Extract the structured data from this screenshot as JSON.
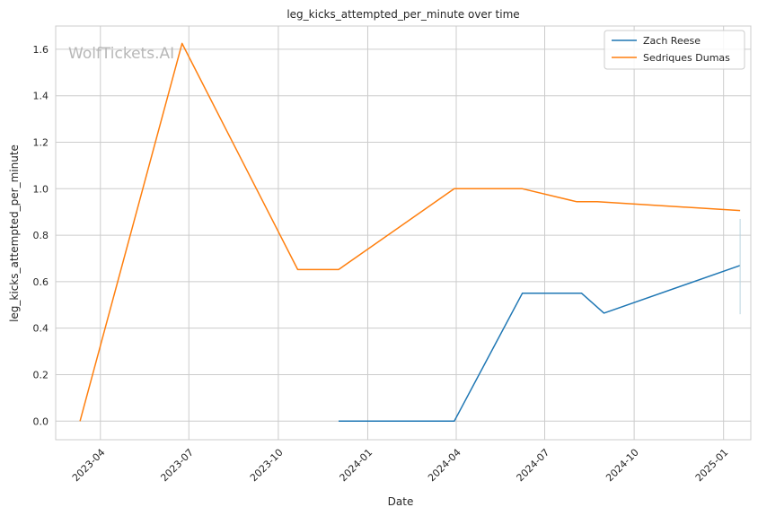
{
  "watermark": "WolfTickets.AI",
  "chart_data": {
    "type": "line",
    "title": "leg_kicks_attempted_per_minute over time",
    "xlabel": "Date",
    "ylabel": "leg_kicks_attempted_per_minute",
    "x_ticks": [
      "2023-04",
      "2023-07",
      "2023-10",
      "2024-01",
      "2024-04",
      "2024-07",
      "2024-10",
      "2025-01"
    ],
    "xlim": [
      "2023-02-14",
      "2025-01-29"
    ],
    "y_ticks": [
      "0.0",
      "0.2",
      "0.4",
      "0.6",
      "0.8",
      "1.0",
      "1.2",
      "1.4",
      "1.6"
    ],
    "ylim": [
      -0.08,
      1.7
    ],
    "grid": true,
    "legend_position": "top-right",
    "series": [
      {
        "name": "Zach Reese",
        "color": "#1f77b4",
        "points": [
          {
            "x": "2023-12-02",
            "y": 0.0
          },
          {
            "x": "2024-03-30",
            "y": 0.0
          },
          {
            "x": "2024-06-08",
            "y": 0.55
          },
          {
            "x": "2024-08-08",
            "y": 0.55
          },
          {
            "x": "2024-08-31",
            "y": 0.465
          },
          {
            "x": "2025-01-18",
            "y": 0.67
          }
        ]
      },
      {
        "name": "Sedriques Dumas",
        "color": "#ff7f0e",
        "points": [
          {
            "x": "2023-03-11",
            "y": 0.0
          },
          {
            "x": "2023-06-24",
            "y": 1.625
          },
          {
            "x": "2023-10-21",
            "y": 0.652
          },
          {
            "x": "2023-12-02",
            "y": 0.652
          },
          {
            "x": "2024-03-30",
            "y": 1.0
          },
          {
            "x": "2024-06-08",
            "y": 1.0
          },
          {
            "x": "2024-08-03",
            "y": 0.944
          },
          {
            "x": "2024-08-24",
            "y": 0.944
          },
          {
            "x": "2025-01-18",
            "y": 0.906
          }
        ]
      }
    ]
  }
}
